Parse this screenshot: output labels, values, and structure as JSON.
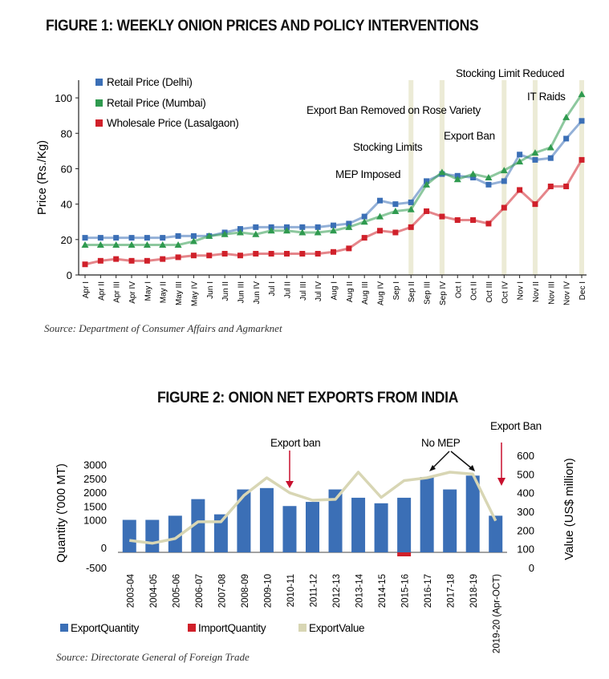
{
  "figure1": {
    "title": "FIGURE 1: WEEKLY ONION PRICES AND POLICY INTERVENTIONS",
    "source": "Source: Department of Consumer Affairs and Agmarknet",
    "chart_data": {
      "type": "line",
      "title": "FIGURE 1: WEEKLY ONION PRICES AND POLICY INTERVENTIONS",
      "ylabel": "Price (Rs./Kg)",
      "xlabel": "",
      "ylim": [
        0,
        110
      ],
      "yticks": [
        0,
        20,
        40,
        60,
        80,
        100
      ],
      "categories": [
        "Apr I",
        "Apr II",
        "Apr III",
        "Apr IV",
        "May I",
        "May II",
        "May III",
        "May IV",
        "Jun I",
        "Jun II",
        "Jun III",
        "Jun IV",
        "Jul I",
        "Jul II",
        "Jul III",
        "Jul IV",
        "Aug I",
        "Aug II",
        "Aug III",
        "Aug IV",
        "Sep I",
        "Sep II",
        "Sep III",
        "Sep IV",
        "Oct I",
        "Oct II",
        "Oct III",
        "Oct IV",
        "Nov I",
        "Nov II",
        "Nov III",
        "Nov IV",
        "Dec I"
      ],
      "series": [
        {
          "name": "Retail Price (Delhi)",
          "color": "#3b6fb6",
          "marker": "square",
          "values": [
            21,
            21,
            21,
            21,
            21,
            21,
            22,
            22,
            22,
            24,
            26,
            27,
            27,
            27,
            27,
            27,
            28,
            29,
            33,
            42,
            40,
            41,
            53,
            57,
            56,
            55,
            51,
            53,
            68,
            65,
            66,
            77,
            87
          ]
        },
        {
          "name": "Retail Price (Mumbai)",
          "color": "#2f9a4f",
          "marker": "triangle",
          "values": [
            17,
            17,
            17,
            17,
            17,
            17,
            17,
            19,
            22,
            23,
            24,
            23,
            25,
            25,
            24,
            24,
            25,
            27,
            30,
            33,
            36,
            37,
            51,
            58,
            54,
            57,
            55,
            59,
            64,
            69,
            72,
            89,
            102
          ]
        },
        {
          "name": "Wholesale Price (Lasalgaon)",
          "color": "#d0202a",
          "marker": "square",
          "values": [
            6,
            8,
            9,
            8,
            8,
            9,
            10,
            11,
            11,
            12,
            11,
            12,
            12,
            12,
            12,
            12,
            13,
            15,
            21,
            25,
            24,
            27,
            36,
            33,
            31,
            31,
            29,
            38,
            48,
            40,
            50,
            50,
            65
          ]
        }
      ],
      "events": [
        {
          "label": "MEP Imposed",
          "index": 21
        },
        {
          "label": "Stocking Limits",
          "index": 23
        },
        {
          "label": "Export Ban Removed on Rose Variety",
          "index": 23
        },
        {
          "label": "Export Ban",
          "index": 27
        },
        {
          "label": "IT Raids",
          "index": 29
        },
        {
          "label": "Stocking Limit Reduced",
          "index": 32
        }
      ],
      "legend": "top-left"
    }
  },
  "figure2": {
    "title": "FIGURE 2: ONION NET EXPORTS FROM INDIA",
    "source": "Source: Directorate General of Foreign Trade",
    "chart_data": {
      "type": "bar",
      "title": "FIGURE 2: ONION NET EXPORTS FROM INDIA",
      "ylabel": "Quantity ('000 MT)",
      "y2label": "Value (US$ million)",
      "ylim": [
        -500,
        3000
      ],
      "yticks": [
        -500,
        0,
        1000,
        1500,
        2000,
        2500,
        3000
      ],
      "y2lim": [
        0,
        600
      ],
      "y2ticks": [
        0,
        100,
        200,
        300,
        400,
        500,
        600
      ],
      "categories": [
        "2003-04",
        "2004-05",
        "2005-06",
        "2006-07",
        "2007-08",
        "2008-09",
        "2009-10",
        "2010-11",
        "2011-12",
        "2012-13",
        "2013-14",
        "2014-15",
        "2015-16",
        "2016-17",
        "2017-18",
        "2018-19",
        "2019-20 (Apr-OCT)"
      ],
      "series": [
        {
          "name": "ExportQuantity",
          "color": "#3b6fb6",
          "type": "bar",
          "values": [
            1000,
            1000,
            1150,
            1750,
            1200,
            2100,
            2150,
            1500,
            1650,
            2100,
            1800,
            1600,
            1800,
            2550,
            2100,
            2600,
            1150
          ]
        },
        {
          "name": "ImportQuantity",
          "color": "#d0202a",
          "type": "bar",
          "values": [
            0,
            0,
            0,
            0,
            0,
            0,
            0,
            0,
            0,
            0,
            0,
            0,
            -90,
            0,
            0,
            0,
            0
          ]
        },
        {
          "name": "ExportValue",
          "color": "#d8d6b4",
          "type": "line",
          "axis": "right",
          "values": [
            145,
            130,
            155,
            245,
            245,
            385,
            480,
            400,
            360,
            365,
            510,
            375,
            465,
            480,
            510,
            500,
            250
          ]
        }
      ],
      "annotations": [
        {
          "label": "Export ban",
          "index": 7
        },
        {
          "label": "No MEP",
          "index": 14
        },
        {
          "label": "Export Ban",
          "index": 16
        }
      ],
      "legend": "bottom"
    }
  }
}
